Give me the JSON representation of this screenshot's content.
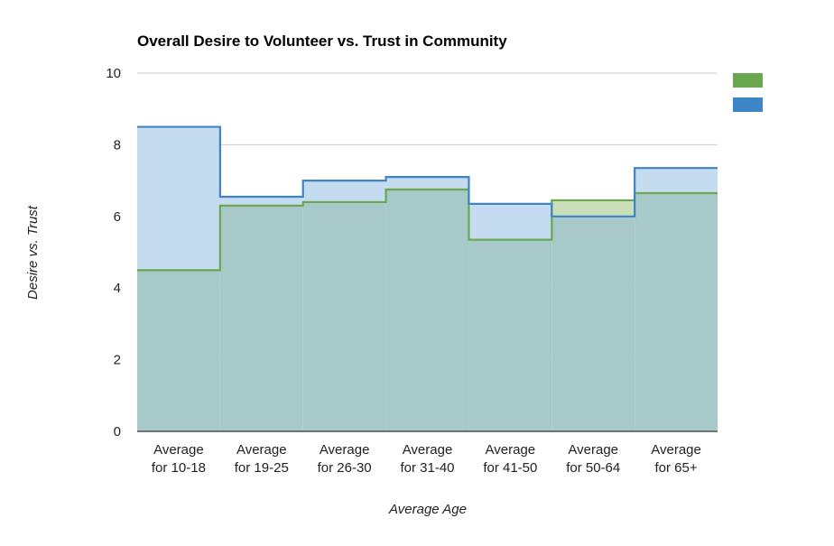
{
  "chart_data": {
    "type": "area",
    "title": "Overall Desire to Volunteer vs. Trust in Community",
    "xlabel": "Average Age",
    "ylabel": "Desire vs. Trust",
    "ylim": [
      0,
      10
    ],
    "yticks": [
      "0",
      "2",
      "4",
      "6",
      "8",
      "10"
    ],
    "categories": [
      [
        "Average",
        "for 10-18"
      ],
      [
        "Average",
        "for 19-25"
      ],
      [
        "Average",
        "for 26-30"
      ],
      [
        "Average",
        "for 31-40"
      ],
      [
        "Average",
        "for 41-50"
      ],
      [
        "Average",
        "for 50-64"
      ],
      [
        "Average",
        "for 65+"
      ]
    ],
    "series": [
      {
        "color": "#6aa84f",
        "fill": "#c9deb9",
        "values": [
          4.5,
          6.3,
          6.4,
          6.75,
          5.35,
          6.45,
          6.65
        ]
      },
      {
        "color": "#3d85c6",
        "fill": "#c5dbef",
        "values": [
          8.5,
          6.55,
          7.0,
          7.1,
          6.35,
          6.0,
          7.35
        ]
      }
    ],
    "overlap_fill": "#a8c9c9",
    "grid": true,
    "legend_position": "top-right",
    "step": true
  }
}
